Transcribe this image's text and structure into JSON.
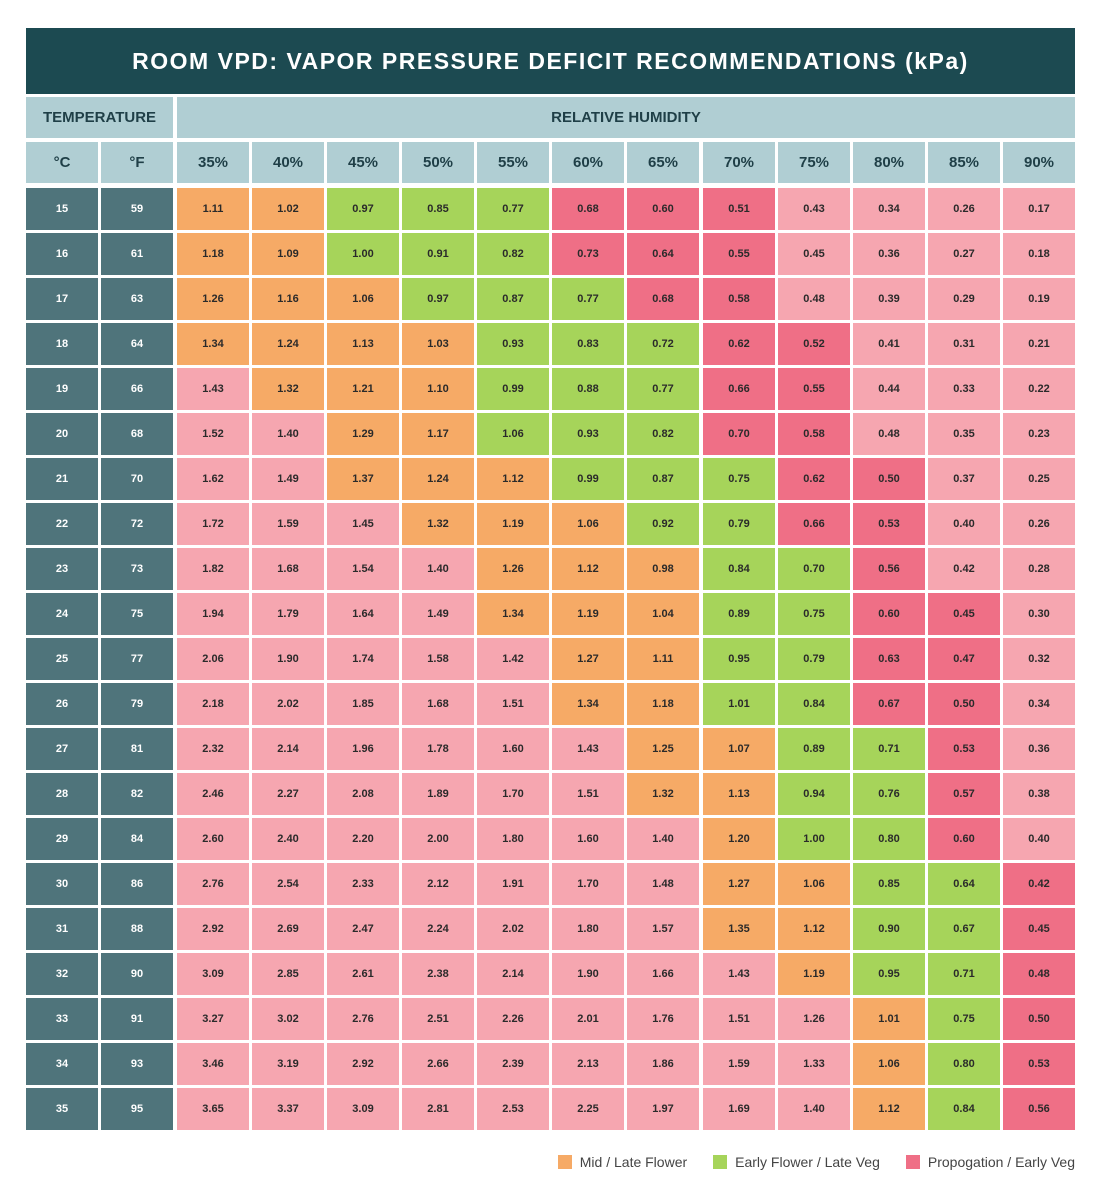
{
  "title": "ROOM VPD: VAPOR PRESSURE DEFICIT RECOMMENDATIONS (kPa)",
  "colors": {
    "header_dark": "#1c4a51",
    "temp_cell": "#4f747b",
    "header_light": "#b0ced3",
    "O": "#f6aa66",
    "G": "#a6d45a",
    "R": "#ef6f86",
    "P": "#f6a6b0"
  },
  "chart_data": {
    "type": "heatmap",
    "title": "ROOM VPD: VAPOR PRESSURE DEFICIT RECOMMENDATIONS (kPa)",
    "row_header": "TEMPERATURE",
    "column_header": "RELATIVE HUMIDITY",
    "temp_units": [
      "°C",
      "°F"
    ],
    "humidity": [
      "35%",
      "40%",
      "45%",
      "50%",
      "55%",
      "60%",
      "65%",
      "70%",
      "75%",
      "80%",
      "85%",
      "90%"
    ],
    "rows": [
      {
        "c": "15",
        "f": "59",
        "v": [
          "1.11",
          "1.02",
          "0.97",
          "0.85",
          "0.77",
          "0.68",
          "0.60",
          "0.51",
          "0.43",
          "0.34",
          "0.26",
          "0.17"
        ],
        "k": "OOGGGRRRPPPP"
      },
      {
        "c": "16",
        "f": "61",
        "v": [
          "1.18",
          "1.09",
          "1.00",
          "0.91",
          "0.82",
          "0.73",
          "0.64",
          "0.55",
          "0.45",
          "0.36",
          "0.27",
          "0.18"
        ],
        "k": "OOGGGRRRPPPP"
      },
      {
        "c": "17",
        "f": "63",
        "v": [
          "1.26",
          "1.16",
          "1.06",
          "0.97",
          "0.87",
          "0.77",
          "0.68",
          "0.58",
          "0.48",
          "0.39",
          "0.29",
          "0.19"
        ],
        "k": "OOOGGGRRPPPP"
      },
      {
        "c": "18",
        "f": "64",
        "v": [
          "1.34",
          "1.24",
          "1.13",
          "1.03",
          "0.93",
          "0.83",
          "0.72",
          "0.62",
          "0.52",
          "0.41",
          "0.31",
          "0.21"
        ],
        "k": "OOOOGGGRRPPP"
      },
      {
        "c": "19",
        "f": "66",
        "v": [
          "1.43",
          "1.32",
          "1.21",
          "1.10",
          "0.99",
          "0.88",
          "0.77",
          "0.66",
          "0.55",
          "0.44",
          "0.33",
          "0.22"
        ],
        "k": "POOOGGGRRPPP"
      },
      {
        "c": "20",
        "f": "68",
        "v": [
          "1.52",
          "1.40",
          "1.29",
          "1.17",
          "1.06",
          "0.93",
          "0.82",
          "0.70",
          "0.58",
          "0.48",
          "0.35",
          "0.23"
        ],
        "k": "PPOOGGGRRPPP"
      },
      {
        "c": "21",
        "f": "70",
        "v": [
          "1.62",
          "1.49",
          "1.37",
          "1.24",
          "1.12",
          "0.99",
          "0.87",
          "0.75",
          "0.62",
          "0.50",
          "0.37",
          "0.25"
        ],
        "k": "PPOOOGGGRRPP"
      },
      {
        "c": "22",
        "f": "72",
        "v": [
          "1.72",
          "1.59",
          "1.45",
          "1.32",
          "1.19",
          "1.06",
          "0.92",
          "0.79",
          "0.66",
          "0.53",
          "0.40",
          "0.26"
        ],
        "k": "PPPOOOGGRRPP"
      },
      {
        "c": "23",
        "f": "73",
        "v": [
          "1.82",
          "1.68",
          "1.54",
          "1.40",
          "1.26",
          "1.12",
          "0.98",
          "0.84",
          "0.70",
          "0.56",
          "0.42",
          "0.28"
        ],
        "k": "PPPPOOOGGRPP"
      },
      {
        "c": "24",
        "f": "75",
        "v": [
          "1.94",
          "1.79",
          "1.64",
          "1.49",
          "1.34",
          "1.19",
          "1.04",
          "0.89",
          "0.75",
          "0.60",
          "0.45",
          "0.30"
        ],
        "k": "PPPPOOOGGRRP"
      },
      {
        "c": "25",
        "f": "77",
        "v": [
          "2.06",
          "1.90",
          "1.74",
          "1.58",
          "1.42",
          "1.27",
          "1.11",
          "0.95",
          "0.79",
          "0.63",
          "0.47",
          "0.32"
        ],
        "k": "PPPPPOOGGRRP"
      },
      {
        "c": "26",
        "f": "79",
        "v": [
          "2.18",
          "2.02",
          "1.85",
          "1.68",
          "1.51",
          "1.34",
          "1.18",
          "1.01",
          "0.84",
          "0.67",
          "0.50",
          "0.34"
        ],
        "k": "PPPPPOOGGRRP"
      },
      {
        "c": "27",
        "f": "81",
        "v": [
          "2.32",
          "2.14",
          "1.96",
          "1.78",
          "1.60",
          "1.43",
          "1.25",
          "1.07",
          "0.89",
          "0.71",
          "0.53",
          "0.36"
        ],
        "k": "PPPPPPOOGGRP"
      },
      {
        "c": "28",
        "f": "82",
        "v": [
          "2.46",
          "2.27",
          "2.08",
          "1.89",
          "1.70",
          "1.51",
          "1.32",
          "1.13",
          "0.94",
          "0.76",
          "0.57",
          "0.38"
        ],
        "k": "PPPPPPOOGGRP"
      },
      {
        "c": "29",
        "f": "84",
        "v": [
          "2.60",
          "2.40",
          "2.20",
          "2.00",
          "1.80",
          "1.60",
          "1.40",
          "1.20",
          "1.00",
          "0.80",
          "0.60",
          "0.40"
        ],
        "k": "PPPPPPPOGGRP"
      },
      {
        "c": "30",
        "f": "86",
        "v": [
          "2.76",
          "2.54",
          "2.33",
          "2.12",
          "1.91",
          "1.70",
          "1.48",
          "1.27",
          "1.06",
          "0.85",
          "0.64",
          "0.42"
        ],
        "k": "PPPPPPPOOGGR"
      },
      {
        "c": "31",
        "f": "88",
        "v": [
          "2.92",
          "2.69",
          "2.47",
          "2.24",
          "2.02",
          "1.80",
          "1.57",
          "1.35",
          "1.12",
          "0.90",
          "0.67",
          "0.45"
        ],
        "k": "PPPPPPPOOGGR"
      },
      {
        "c": "32",
        "f": "90",
        "v": [
          "3.09",
          "2.85",
          "2.61",
          "2.38",
          "2.14",
          "1.90",
          "1.66",
          "1.43",
          "1.19",
          "0.95",
          "0.71",
          "0.48"
        ],
        "k": "PPPPPPPPOGGR"
      },
      {
        "c": "33",
        "f": "91",
        "v": [
          "3.27",
          "3.02",
          "2.76",
          "2.51",
          "2.26",
          "2.01",
          "1.76",
          "1.51",
          "1.26",
          "1.01",
          "0.75",
          "0.50"
        ],
        "k": "PPPPPPPPPOGR"
      },
      {
        "c": "34",
        "f": "93",
        "v": [
          "3.46",
          "3.19",
          "2.92",
          "2.66",
          "2.39",
          "2.13",
          "1.86",
          "1.59",
          "1.33",
          "1.06",
          "0.80",
          "0.53"
        ],
        "k": "PPPPPPPPPOGR"
      },
      {
        "c": "35",
        "f": "95",
        "v": [
          "3.65",
          "3.37",
          "3.09",
          "2.81",
          "2.53",
          "2.25",
          "1.97",
          "1.69",
          "1.40",
          "1.12",
          "0.84",
          "0.56"
        ],
        "k": "PPPPPPPPPOGR"
      }
    ],
    "legend": [
      {
        "key": "O",
        "label": "Mid / Late Flower"
      },
      {
        "key": "G",
        "label": "Early Flower / Late Veg"
      },
      {
        "key": "R",
        "label": "Propogation / Early Veg"
      }
    ],
    "legend_placement": "bottom-right"
  }
}
